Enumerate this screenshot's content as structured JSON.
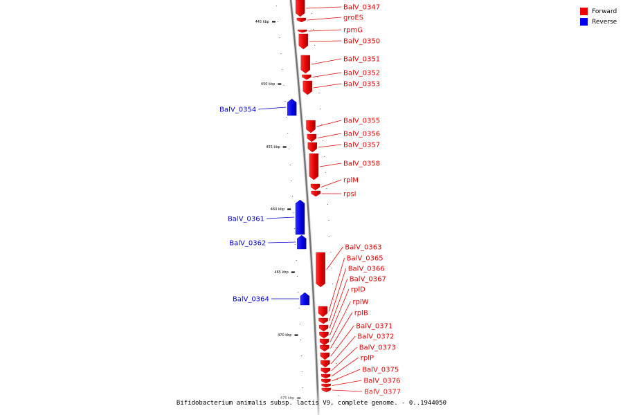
{
  "legend": {
    "forward": {
      "label": "Forward",
      "color": "#ee0000"
    },
    "reverse": {
      "label": "Reverse",
      "color": "#0000ee"
    }
  },
  "caption": "Bifidobacterium animalis subsp. lactis V9, complete genome. - 0..1944050",
  "ticks": [
    "445 kbp",
    "450 kbp",
    "455 kbp",
    "460 kbp",
    "465 kbp",
    "470 kbp",
    "475 kbp"
  ],
  "genes": [
    {
      "name": "BalV_0347",
      "strand": "forward"
    },
    {
      "name": "groES",
      "strand": "forward"
    },
    {
      "name": "rpmG",
      "strand": "forward"
    },
    {
      "name": "BalV_0350",
      "strand": "forward"
    },
    {
      "name": "BalV_0351",
      "strand": "forward"
    },
    {
      "name": "BalV_0352",
      "strand": "forward"
    },
    {
      "name": "BalV_0353",
      "strand": "forward"
    },
    {
      "name": "BalV_0354",
      "strand": "reverse"
    },
    {
      "name": "BalV_0355",
      "strand": "forward"
    },
    {
      "name": "BalV_0356",
      "strand": "forward"
    },
    {
      "name": "BalV_0357",
      "strand": "forward"
    },
    {
      "name": "BalV_0358",
      "strand": "forward"
    },
    {
      "name": "rplM",
      "strand": "forward"
    },
    {
      "name": "rpsI",
      "strand": "forward"
    },
    {
      "name": "BalV_0361",
      "strand": "reverse"
    },
    {
      "name": "BalV_0362",
      "strand": "reverse"
    },
    {
      "name": "BalV_0363",
      "strand": "forward"
    },
    {
      "name": "BalV_0365",
      "strand": "forward"
    },
    {
      "name": "BalV_0366",
      "strand": "forward"
    },
    {
      "name": "BalV_0367",
      "strand": "forward"
    },
    {
      "name": "rplD",
      "strand": "forward"
    },
    {
      "name": "rplW",
      "strand": "forward"
    },
    {
      "name": "rplB",
      "strand": "forward"
    },
    {
      "name": "BalV_0371",
      "strand": "forward"
    },
    {
      "name": "BalV_0372",
      "strand": "forward"
    },
    {
      "name": "BalV_0373",
      "strand": "forward"
    },
    {
      "name": "rplP",
      "strand": "forward"
    },
    {
      "name": "BalV_0375",
      "strand": "forward"
    },
    {
      "name": "BalV_0376",
      "strand": "forward"
    },
    {
      "name": "BalV_0377",
      "strand": "forward"
    },
    {
      "name": "BalV_0364",
      "strand": "reverse"
    }
  ]
}
